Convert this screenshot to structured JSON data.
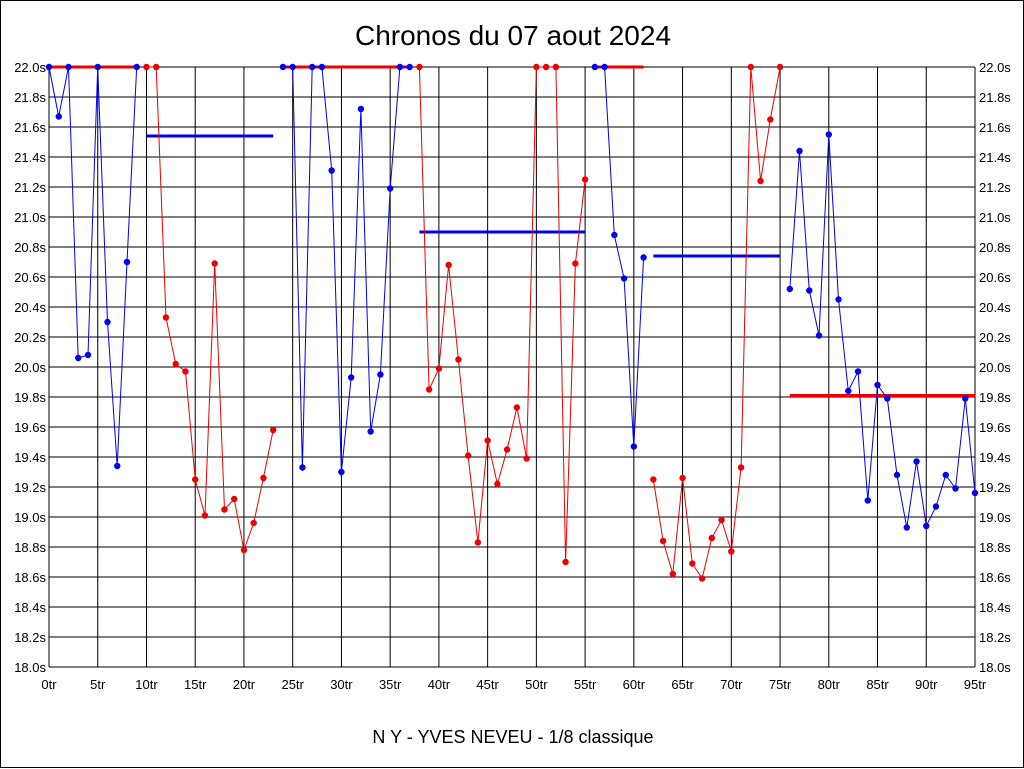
{
  "chart_data": {
    "type": "line",
    "title": "Chronos du 07 aout 2024",
    "footer": "N Y - YVES NEVEU - 1/8 classique",
    "xlabel": "",
    "ylabel": "",
    "xlim": [
      0,
      95
    ],
    "ylim": [
      18.0,
      22.0
    ],
    "x_ticks": [
      {
        "v": 0,
        "label": "0tr"
      },
      {
        "v": 5,
        "label": "5tr"
      },
      {
        "v": 10,
        "label": "10tr"
      },
      {
        "v": 15,
        "label": "15tr"
      },
      {
        "v": 20,
        "label": "20tr"
      },
      {
        "v": 25,
        "label": "25tr"
      },
      {
        "v": 30,
        "label": "30tr"
      },
      {
        "v": 35,
        "label": "35tr"
      },
      {
        "v": 40,
        "label": "40tr"
      },
      {
        "v": 45,
        "label": "45tr"
      },
      {
        "v": 50,
        "label": "50tr"
      },
      {
        "v": 55,
        "label": "55tr"
      },
      {
        "v": 60,
        "label": "60tr"
      },
      {
        "v": 65,
        "label": "65tr"
      },
      {
        "v": 70,
        "label": "70tr"
      },
      {
        "v": 75,
        "label": "75tr"
      },
      {
        "v": 80,
        "label": "80tr"
      },
      {
        "v": 85,
        "label": "85tr"
      },
      {
        "v": 90,
        "label": "90tr"
      },
      {
        "v": 95,
        "label": "95tr"
      }
    ],
    "y_ticks": [
      {
        "v": 18.0,
        "label": "18.0s"
      },
      {
        "v": 18.2,
        "label": "18.2s"
      },
      {
        "v": 18.4,
        "label": "18.4s"
      },
      {
        "v": 18.6,
        "label": "18.6s"
      },
      {
        "v": 18.8,
        "label": "18.8s"
      },
      {
        "v": 19.0,
        "label": "19.0s"
      },
      {
        "v": 19.2,
        "label": "19.2s"
      },
      {
        "v": 19.4,
        "label": "19.4s"
      },
      {
        "v": 19.6,
        "label": "19.6s"
      },
      {
        "v": 19.8,
        "label": "19.8s"
      },
      {
        "v": 20.0,
        "label": "20.0s"
      },
      {
        "v": 20.2,
        "label": "20.2s"
      },
      {
        "v": 20.4,
        "label": "20.4s"
      },
      {
        "v": 20.6,
        "label": "20.6s"
      },
      {
        "v": 20.8,
        "label": "20.8s"
      },
      {
        "v": 21.0,
        "label": "21.0s"
      },
      {
        "v": 21.2,
        "label": "21.2s"
      },
      {
        "v": 21.4,
        "label": "21.4s"
      },
      {
        "v": 21.6,
        "label": "21.6s"
      },
      {
        "v": 21.8,
        "label": "21.8s"
      },
      {
        "v": 22.0,
        "label": "22.0s"
      }
    ],
    "grid": true,
    "series": [
      {
        "color": "#0000ee",
        "points": [
          [
            0,
            22.0
          ],
          [
            1,
            21.67
          ],
          [
            2,
            22.0
          ],
          [
            3,
            20.06
          ],
          [
            4,
            20.08
          ],
          [
            5,
            22.0
          ],
          [
            6,
            20.3
          ],
          [
            7,
            19.34
          ],
          [
            8,
            20.7
          ],
          [
            9,
            22.0
          ]
        ]
      },
      {
        "color": "#ee0000",
        "points": [
          [
            10,
            22.0
          ],
          [
            11,
            22.0
          ],
          [
            12,
            20.33
          ],
          [
            13,
            20.02
          ],
          [
            14,
            19.97
          ],
          [
            15,
            19.25
          ],
          [
            16,
            19.01
          ],
          [
            17,
            20.69
          ],
          [
            18,
            19.05
          ],
          [
            19,
            19.12
          ],
          [
            20,
            18.78
          ],
          [
            21,
            18.96
          ],
          [
            22,
            19.26
          ],
          [
            23,
            19.58
          ]
        ]
      },
      {
        "color": "#0000ee",
        "points": [
          [
            24,
            22.0
          ],
          [
            25,
            22.0
          ],
          [
            26,
            19.33
          ],
          [
            27,
            22.0
          ],
          [
            28,
            22.0
          ],
          [
            29,
            21.31
          ],
          [
            30,
            19.3
          ],
          [
            31,
            19.93
          ],
          [
            32,
            21.72
          ],
          [
            33,
            19.57
          ],
          [
            34,
            19.95
          ],
          [
            35,
            21.19
          ],
          [
            36,
            22.0
          ],
          [
            37,
            22.0
          ]
        ]
      },
      {
        "color": "#ee0000",
        "points": [
          [
            38,
            22.0
          ],
          [
            39,
            19.85
          ],
          [
            40,
            19.99
          ],
          [
            41,
            20.68
          ],
          [
            42,
            20.05
          ],
          [
            43,
            19.41
          ],
          [
            44,
            18.83
          ],
          [
            45,
            19.51
          ],
          [
            46,
            19.22
          ],
          [
            47,
            19.45
          ],
          [
            48,
            19.73
          ],
          [
            49,
            19.39
          ],
          [
            50,
            22.0
          ],
          [
            51,
            22.0
          ],
          [
            52,
            22.0
          ],
          [
            53,
            18.7
          ],
          [
            54,
            20.69
          ],
          [
            55,
            21.25
          ]
        ]
      },
      {
        "color": "#0000ee",
        "points": [
          [
            56,
            22.0
          ],
          [
            57,
            22.0
          ],
          [
            58,
            20.88
          ],
          [
            59,
            20.59
          ],
          [
            60,
            19.47
          ],
          [
            61,
            20.73
          ]
        ]
      },
      {
        "color": "#ee0000",
        "points": [
          [
            62,
            19.25
          ],
          [
            63,
            18.84
          ],
          [
            64,
            18.62
          ],
          [
            65,
            19.26
          ],
          [
            66,
            18.69
          ],
          [
            67,
            18.59
          ],
          [
            68,
            18.86
          ],
          [
            69,
            18.98
          ],
          [
            70,
            18.77
          ],
          [
            71,
            19.33
          ],
          [
            72,
            22.0
          ],
          [
            73,
            21.24
          ],
          [
            74,
            21.65
          ],
          [
            75,
            22.0
          ]
        ]
      },
      {
        "color": "#0000ee",
        "points": [
          [
            76,
            20.52
          ],
          [
            77,
            21.44
          ],
          [
            78,
            20.51
          ],
          [
            79,
            20.21
          ],
          [
            80,
            21.55
          ],
          [
            81,
            20.45
          ],
          [
            82,
            19.84
          ],
          [
            83,
            19.97
          ],
          [
            84,
            19.11
          ],
          [
            85,
            19.88
          ],
          [
            86,
            19.79
          ],
          [
            87,
            19.28
          ],
          [
            88,
            18.93
          ],
          [
            89,
            19.37
          ],
          [
            90,
            18.94
          ],
          [
            91,
            19.07
          ],
          [
            92,
            19.28
          ],
          [
            93,
            19.19
          ],
          [
            94,
            19.79
          ],
          [
            95,
            19.16
          ]
        ]
      }
    ],
    "reference_lines": [
      {
        "color": "#ee0000",
        "x0": 0,
        "x1": 9,
        "y": 22.0
      },
      {
        "color": "#0000ee",
        "x0": 10,
        "x1": 23,
        "y": 21.54
      },
      {
        "color": "#ee0000",
        "x0": 24,
        "x1": 37,
        "y": 22.0
      },
      {
        "color": "#0000ee",
        "x0": 38,
        "x1": 55,
        "y": 20.9
      },
      {
        "color": "#ee0000",
        "x0": 56,
        "x1": 61,
        "y": 22.0
      },
      {
        "color": "#0000ee",
        "x0": 62,
        "x1": 75,
        "y": 20.74
      },
      {
        "color": "#ee0000",
        "x0": 76,
        "x1": 95,
        "y": 19.81
      }
    ]
  }
}
